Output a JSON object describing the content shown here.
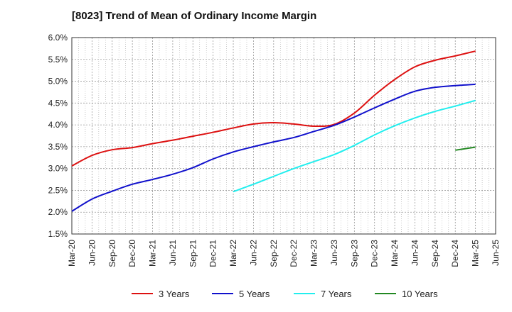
{
  "chart_data": {
    "type": "line",
    "title": "[8023]  Trend of Mean of Ordinary Income Margin",
    "xlabel": "",
    "ylabel": "",
    "ylim": [
      1.5,
      6.0
    ],
    "y_ticks": [
      "1.5%",
      "2.0%",
      "2.5%",
      "3.0%",
      "3.5%",
      "4.0%",
      "4.5%",
      "5.0%",
      "5.5%",
      "6.0%"
    ],
    "x_ticks": [
      "Mar-20",
      "Jun-20",
      "Sep-20",
      "Dec-20",
      "Mar-21",
      "Jun-21",
      "Sep-21",
      "Dec-21",
      "Mar-22",
      "Jun-22",
      "Sep-22",
      "Dec-22",
      "Mar-23",
      "Jun-23",
      "Sep-23",
      "Dec-23",
      "Mar-24",
      "Jun-24",
      "Sep-24",
      "Dec-24",
      "Mar-25",
      "Jun-25"
    ],
    "grid": true,
    "legend_position": "bottom",
    "series": [
      {
        "name": "3 Years",
        "color": "#dd1111",
        "x": [
          "Mar-20",
          "Jun-20",
          "Sep-20",
          "Dec-20",
          "Mar-21",
          "Jun-21",
          "Sep-21",
          "Dec-21",
          "Mar-22",
          "Jun-22",
          "Sep-22",
          "Dec-22",
          "Mar-23",
          "Jun-23",
          "Sep-23",
          "Dec-23",
          "Mar-24",
          "Jun-24",
          "Sep-24",
          "Dec-24",
          "Mar-25"
        ],
        "values": [
          3.06,
          3.3,
          3.43,
          3.48,
          3.57,
          3.65,
          3.74,
          3.83,
          3.93,
          4.02,
          4.05,
          4.02,
          3.97,
          4.01,
          4.27,
          4.68,
          5.04,
          5.33,
          5.48,
          5.58,
          5.69
        ]
      },
      {
        "name": "5 Years",
        "color": "#1111cc",
        "x": [
          "Mar-20",
          "Jun-20",
          "Sep-20",
          "Dec-20",
          "Mar-21",
          "Jun-21",
          "Sep-21",
          "Dec-21",
          "Mar-22",
          "Jun-22",
          "Sep-22",
          "Dec-22",
          "Mar-23",
          "Jun-23",
          "Sep-23",
          "Dec-23",
          "Mar-24",
          "Jun-24",
          "Sep-24",
          "Dec-24",
          "Mar-25"
        ],
        "values": [
          2.02,
          2.3,
          2.48,
          2.64,
          2.75,
          2.87,
          3.02,
          3.22,
          3.38,
          3.5,
          3.61,
          3.71,
          3.85,
          3.99,
          4.18,
          4.39,
          4.59,
          4.77,
          4.86,
          4.9,
          4.93
        ]
      },
      {
        "name": "7 Years",
        "color": "#22eeee",
        "x": [
          "Mar-22",
          "Jun-22",
          "Sep-22",
          "Dec-22",
          "Mar-23",
          "Jun-23",
          "Sep-23",
          "Dec-23",
          "Mar-24",
          "Jun-24",
          "Sep-24",
          "Dec-24",
          "Mar-25"
        ],
        "values": [
          2.47,
          2.64,
          2.82,
          3.0,
          3.16,
          3.32,
          3.53,
          3.77,
          3.98,
          4.16,
          4.31,
          4.43,
          4.56
        ]
      },
      {
        "name": "10 Years",
        "color": "#228822",
        "x": [
          "Dec-24",
          "Mar-25"
        ],
        "values": [
          3.42,
          3.49
        ]
      }
    ]
  }
}
